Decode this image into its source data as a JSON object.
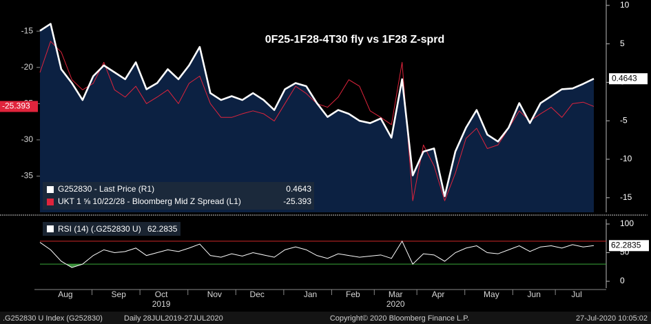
{
  "chart_data": [
    {
      "type": "line",
      "title": "0F25-1F28-4T30 fly vs 1F28 Z-sprd",
      "categories": [
        null,
        null,
        "Aug",
        null,
        null,
        null,
        null,
        "Sep",
        null,
        null,
        null,
        "Oct",
        null,
        null,
        null,
        null,
        "Nov",
        null,
        null,
        null,
        "Dec",
        null,
        null,
        null,
        null,
        "Jan",
        null,
        null,
        null,
        "Feb",
        null,
        null,
        null,
        "Mar",
        null,
        null,
        null,
        "Apr",
        null,
        null,
        null,
        null,
        "May",
        null,
        null,
        null,
        "Jun",
        null,
        null,
        null,
        "Jul",
        null,
        null
      ],
      "year_labels": [
        {
          "label": "2019",
          "category": "Oct"
        },
        {
          "label": "2020",
          "category": "Mar"
        }
      ],
      "series": [
        {
          "name": "G252830 - Last Price (R1)",
          "color": "#ffffff",
          "fill": "#0c2142",
          "axis": "y2",
          "values": [
            6.7,
            7.6,
            1.7,
            -0.1,
            -2.3,
            0.8,
            2.2,
            1.3,
            0.4,
            2.6,
            -0.9,
            -0.1,
            1.7,
            0.4,
            2.2,
            4.6,
            -1.4,
            -2.3,
            -1.8,
            -2.3,
            -1.4,
            -2.3,
            -3.6,
            -0.9,
            -0.1,
            -0.5,
            -2.7,
            -4.5,
            -3.6,
            -4.1,
            -5.0,
            -5.3,
            -4.7,
            -7.2,
            0.4,
            -12.1,
            -9.0,
            -8.6,
            -14.8,
            -9.0,
            -5.9,
            -3.6,
            -6.8,
            -7.7,
            -5.9,
            -2.7,
            -5.3,
            -2.7,
            -1.8,
            -0.9,
            -0.8,
            -0.2,
            0.4643
          ]
        },
        {
          "name": "UKT 1 ⅝ 10/22/28 - Bloomberg Mid Z Spread (L1)",
          "color": "#e0243c",
          "values": [
            -20.7,
            -16.4,
            -17.9,
            -21.7,
            -23.1,
            -22.2,
            -19.3,
            -23.1,
            -24.1,
            -22.6,
            -25.0,
            -24.1,
            -23.1,
            -25.0,
            -22.2,
            -21.2,
            -25.0,
            -26.9,
            -26.9,
            -26.4,
            -26.0,
            -26.4,
            -27.4,
            -25.0,
            -22.6,
            -23.6,
            -25.0,
            -25.5,
            -24.1,
            -21.7,
            -22.6,
            -26.0,
            -26.9,
            -27.9,
            -19.3,
            -38.4,
            -30.7,
            -33.6,
            -38.4,
            -34.6,
            -29.8,
            -28.4,
            -31.2,
            -30.7,
            -28.4,
            -26.0,
            -27.4,
            -26.4,
            -25.5,
            -26.9,
            -25.0,
            -24.8,
            -25.393
          ]
        }
      ],
      "ylim": [
        -40,
        -10.7
      ],
      "yticks": [
        -35,
        -30,
        -25,
        -20,
        -15
      ],
      "y2lim": [
        -16.9,
        10.7
      ],
      "y2ticks": [
        -15,
        -10,
        -5,
        0,
        5,
        10
      ],
      "grid": false
    },
    {
      "type": "line",
      "series": [
        {
          "name": "RSI (14) (.G252830 U)",
          "color": "#ffffff",
          "axis": "y2",
          "values": [
            68,
            55,
            35,
            24,
            30,
            45,
            55,
            50,
            52,
            58,
            45,
            50,
            55,
            52,
            58,
            65,
            45,
            42,
            48,
            44,
            50,
            46,
            42,
            55,
            60,
            55,
            45,
            40,
            48,
            45,
            42,
            44,
            46,
            40,
            70,
            30,
            48,
            46,
            35,
            50,
            58,
            62,
            50,
            48,
            55,
            62,
            52,
            60,
            62,
            58,
            64,
            60,
            62.2835
          ]
        }
      ],
      "y2lim": [
        -12,
        108.4
      ],
      "y2ticks": [
        0,
        50,
        100
      ],
      "reference_lines": [
        {
          "value": 70,
          "color": "#d02828"
        },
        {
          "value": 30,
          "color": "#3aa83a",
          "fill": "#3a8a3a"
        }
      ],
      "grid": false
    }
  ],
  "footer": {
    "index": ".G252830 U Index (G252830)",
    "range": "Daily 28JUL2019-27JUL2020",
    "copyright": "Copyright© 2020 Bloomberg Finance L.P.",
    "timestamp": "27-Jul-2020 10:05:02"
  }
}
